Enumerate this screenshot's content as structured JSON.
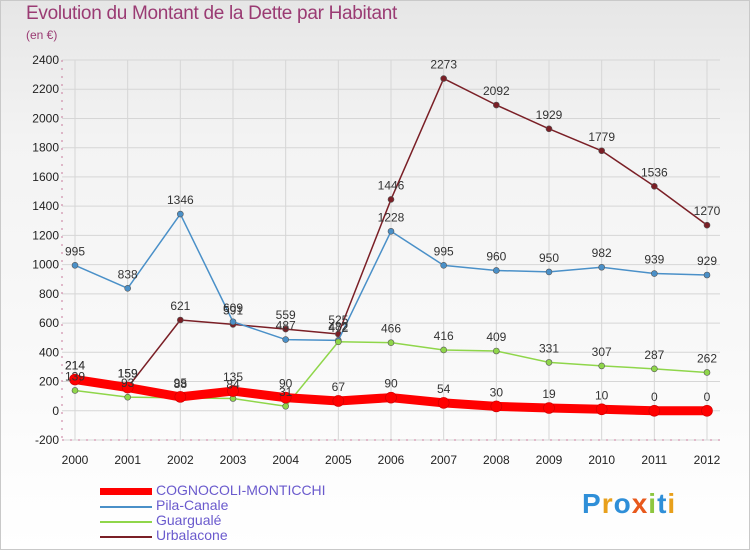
{
  "title": "Evolution du Montant de la Dette par Habitant",
  "unit": "(en €)",
  "logo": "Proxiti",
  "chart_data": {
    "type": "line",
    "title": "Evolution du Montant de la Dette par Habitant",
    "ylabel": "(en €)",
    "x": [
      "2000",
      "2001",
      "2002",
      "2003",
      "2004",
      "2005",
      "2006",
      "2007",
      "2008",
      "2009",
      "2010",
      "2011",
      "2012"
    ],
    "ylim": [
      -200,
      2400
    ],
    "yticks": [
      -200,
      0,
      200,
      400,
      600,
      800,
      1000,
      1200,
      1400,
      1600,
      1800,
      2000,
      2200,
      2400
    ],
    "grid": true,
    "legend": "bottom",
    "series": [
      {
        "name": "Urbalacone",
        "color": "#7a1f26",
        "values": [
          214,
          159,
          621,
          591,
          559,
          525,
          1446,
          2273,
          2092,
          1929,
          1779,
          1536,
          1270
        ]
      },
      {
        "name": "Pila-Canale",
        "color": "#4a90c8",
        "values": [
          995,
          838,
          1346,
          609,
          487,
          482,
          1228,
          995,
          960,
          950,
          982,
          939,
          929
        ]
      },
      {
        "name": "Guargualé",
        "color": "#8fd64a",
        "values": [
          139,
          93,
          88,
          84,
          31,
          472,
          466,
          416,
          409,
          331,
          307,
          287,
          262
        ]
      },
      {
        "name": "COGNOCOLI-MONTICCHI",
        "color": "#ff0000",
        "values": [
          214,
          159,
          95,
          135,
          90,
          67,
          90,
          54,
          30,
          19,
          10,
          0,
          0
        ]
      }
    ]
  },
  "legend_order": [
    "COGNOCOLI-MONTICCHI",
    "Pila-Canale",
    "Guargualé",
    "Urbalacone"
  ]
}
